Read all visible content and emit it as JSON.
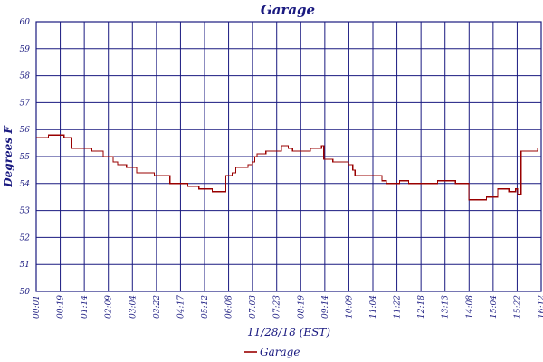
{
  "chart_data": {
    "type": "line",
    "title": "Garage",
    "xlabel": "11/28/18 (EST)",
    "ylabel": "Degrees F",
    "ylim": [
      50,
      60
    ],
    "yticks": [
      "50",
      "51",
      "52",
      "53",
      "54",
      "55",
      "56",
      "57",
      "58",
      "59",
      "60"
    ],
    "xticks": [
      "00:01",
      "00:19",
      "01:14",
      "02:09",
      "03:04",
      "03:22",
      "04:17",
      "05:12",
      "06:08",
      "07:03",
      "07:23",
      "08:19",
      "09:14",
      "10:09",
      "11:04",
      "11:22",
      "12:18",
      "13:13",
      "14:08",
      "15:04",
      "15:22",
      "16:12"
    ],
    "grid": true,
    "legend": "bottom-center",
    "colors": {
      "series": "#990000",
      "axis": "#1a1a80",
      "grid": "#1a1a80"
    },
    "series": [
      {
        "name": "Garage",
        "points": [
          [
            0,
            55.7
          ],
          [
            1.1,
            55.8
          ],
          [
            2.5,
            55.7
          ],
          [
            3.2,
            55.3
          ],
          [
            4.6,
            55.3
          ],
          [
            5.0,
            55.2
          ],
          [
            5.6,
            55.2
          ],
          [
            6.0,
            55.0
          ],
          [
            6.6,
            55.0
          ],
          [
            6.9,
            54.8
          ],
          [
            7.3,
            54.7
          ],
          [
            7.6,
            54.7
          ],
          [
            7.8,
            54.7
          ],
          [
            8.1,
            54.6
          ],
          [
            8.6,
            54.6
          ],
          [
            9.0,
            54.4
          ],
          [
            9.6,
            54.4
          ],
          [
            10.1,
            54.4
          ],
          [
            10.6,
            54.3
          ],
          [
            11.6,
            54.3
          ],
          [
            12.0,
            54.0
          ],
          [
            12.6,
            54.0
          ],
          [
            13.0,
            54.0
          ],
          [
            13.6,
            53.9
          ],
          [
            14.0,
            53.9
          ],
          [
            14.6,
            53.8
          ],
          [
            15.4,
            53.8
          ],
          [
            15.8,
            53.7
          ],
          [
            16.5,
            53.7
          ],
          [
            16.8,
            53.7
          ],
          [
            17.0,
            54.3
          ],
          [
            17.6,
            54.4
          ],
          [
            17.9,
            54.6
          ],
          [
            18.6,
            54.6
          ],
          [
            19.0,
            54.7
          ],
          [
            19.4,
            54.8
          ],
          [
            19.6,
            55.0
          ],
          [
            19.8,
            55.1
          ],
          [
            20.6,
            55.2
          ],
          [
            21.6,
            55.2
          ],
          [
            22.0,
            55.4
          ],
          [
            22.6,
            55.3
          ],
          [
            23.0,
            55.2
          ],
          [
            24.0,
            55.2
          ],
          [
            24.6,
            55.3
          ],
          [
            25.4,
            55.3
          ],
          [
            25.6,
            55.4
          ],
          [
            25.8,
            54.9
          ],
          [
            26.6,
            54.8
          ],
          [
            27.4,
            54.8
          ],
          [
            28.0,
            54.7
          ],
          [
            28.4,
            54.5
          ],
          [
            28.6,
            54.3
          ],
          [
            30.0,
            54.3
          ],
          [
            30.6,
            54.3
          ],
          [
            31.0,
            54.1
          ],
          [
            31.4,
            54.0
          ],
          [
            32.0,
            54.0
          ],
          [
            32.6,
            54.1
          ],
          [
            33.0,
            54.1
          ],
          [
            33.4,
            54.0
          ],
          [
            34.6,
            54.0
          ],
          [
            35.2,
            54.0
          ],
          [
            36.0,
            54.1
          ],
          [
            37.0,
            54.1
          ],
          [
            37.6,
            54.0
          ],
          [
            38.6,
            54.0
          ],
          [
            38.8,
            53.4
          ],
          [
            39.6,
            53.4
          ],
          [
            40.0,
            53.4
          ],
          [
            40.4,
            53.5
          ],
          [
            41.0,
            53.5
          ],
          [
            41.4,
            53.8
          ],
          [
            42.0,
            53.8
          ],
          [
            42.4,
            53.7
          ],
          [
            43.0,
            53.8
          ],
          [
            43.2,
            53.6
          ],
          [
            43.5,
            55.2
          ],
          [
            44.0,
            55.2
          ],
          [
            44.8,
            55.2
          ],
          [
            45.0,
            55.3
          ]
        ]
      }
    ]
  }
}
